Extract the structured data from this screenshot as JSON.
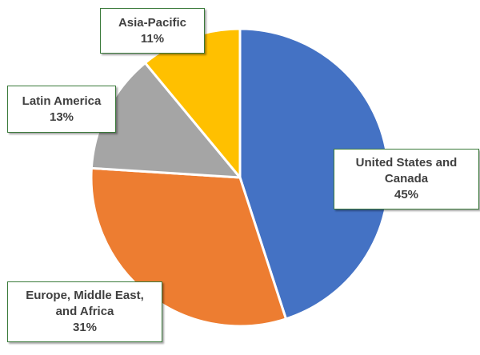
{
  "chart_data": {
    "type": "pie",
    "title": "",
    "start": "top-clockwise",
    "slices": [
      {
        "label": "United States and Canada",
        "value": 45,
        "display": "45%",
        "color": "#4472C4"
      },
      {
        "label": "Europe, Middle East, and Africa",
        "value": 31,
        "display": "31%",
        "color": "#ED7D31"
      },
      {
        "label": "Latin America",
        "value": 13,
        "display": "13%",
        "color": "#A5A5A5"
      },
      {
        "label": "Asia-Pacific",
        "value": 11,
        "display": "11%",
        "color": "#FFC000"
      }
    ],
    "label_lines": [
      [
        "United States and",
        "Canada"
      ],
      [
        "Europe, Middle East,",
        "and Africa"
      ],
      [
        "Latin America"
      ],
      [
        "Asia-Pacific"
      ]
    ]
  }
}
